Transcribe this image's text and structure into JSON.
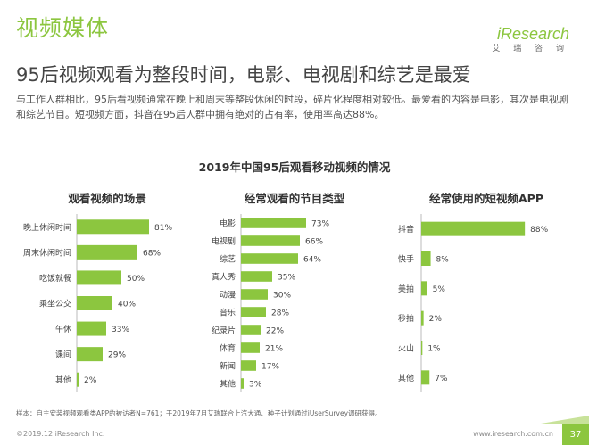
{
  "header": {
    "section_title": "视频媒体",
    "headline": "95后视频观看为整段时间，电影、电视剧和综艺是最爱",
    "intro": "与工作人群相比，95后看视频通常在晚上和周末等整段休闲的时段，碎片化程度相对较低。最爱看的内容是电影，其次是电视剧和综艺节目。短视频方面，抖音在95后人群中拥有绝对的占有率，使用率高达88%。"
  },
  "logo": {
    "brand": "iResearch",
    "sub": "艾 瑞 咨 询"
  },
  "colors": {
    "accent": "#8cc63f",
    "bar": "#8cc63f",
    "bar_dark": "#7ab52f"
  },
  "chart_data": [
    {
      "type": "bar",
      "orientation": "horizontal",
      "overall_title": "2019年中国95后观看移动视频的情况",
      "title": "观看视频的场景",
      "categories": [
        "晚上休闲时间",
        "周末休闲时间",
        "吃饭就餐",
        "乘坐公交",
        "午休",
        "课间",
        "其他"
      ],
      "values": [
        81,
        68,
        50,
        40,
        33,
        29,
        2
      ],
      "labels": [
        "81%",
        "68%",
        "50%",
        "40%",
        "33%",
        "29%",
        "2%"
      ],
      "xlim": [
        0,
        100
      ]
    },
    {
      "type": "bar",
      "orientation": "horizontal",
      "title": "经常观看的节目类型",
      "categories": [
        "电影",
        "电视剧",
        "综艺",
        "真人秀",
        "动漫",
        "音乐",
        "纪录片",
        "体育",
        "新闻",
        "其他"
      ],
      "values": [
        73,
        66,
        64,
        35,
        30,
        28,
        22,
        21,
        17,
        3
      ],
      "labels": [
        "73%",
        "66%",
        "64%",
        "35%",
        "30%",
        "28%",
        "22%",
        "21%",
        "17%",
        "3%"
      ],
      "xlim": [
        0,
        100
      ]
    },
    {
      "type": "bar",
      "orientation": "horizontal",
      "title": "经常使用的短视频APP",
      "categories": [
        "抖音",
        "快手",
        "美拍",
        "秒拍",
        "火山",
        "其他"
      ],
      "values": [
        88,
        8,
        5,
        2,
        1,
        7
      ],
      "labels": [
        "88%",
        "8%",
        "5%",
        "2%",
        "1%",
        "7%"
      ],
      "xlim": [
        0,
        100
      ]
    }
  ],
  "footer": {
    "note": "样本：自主安装视频观看类APP的被访者N=761；于2019年7月艾瑞联合上汽大通、种子计划通过iUserSurvey调研获得。",
    "copyright": "©2019.12 iResearch Inc.",
    "website": "www.iresearch.com.cn",
    "page": "37"
  }
}
